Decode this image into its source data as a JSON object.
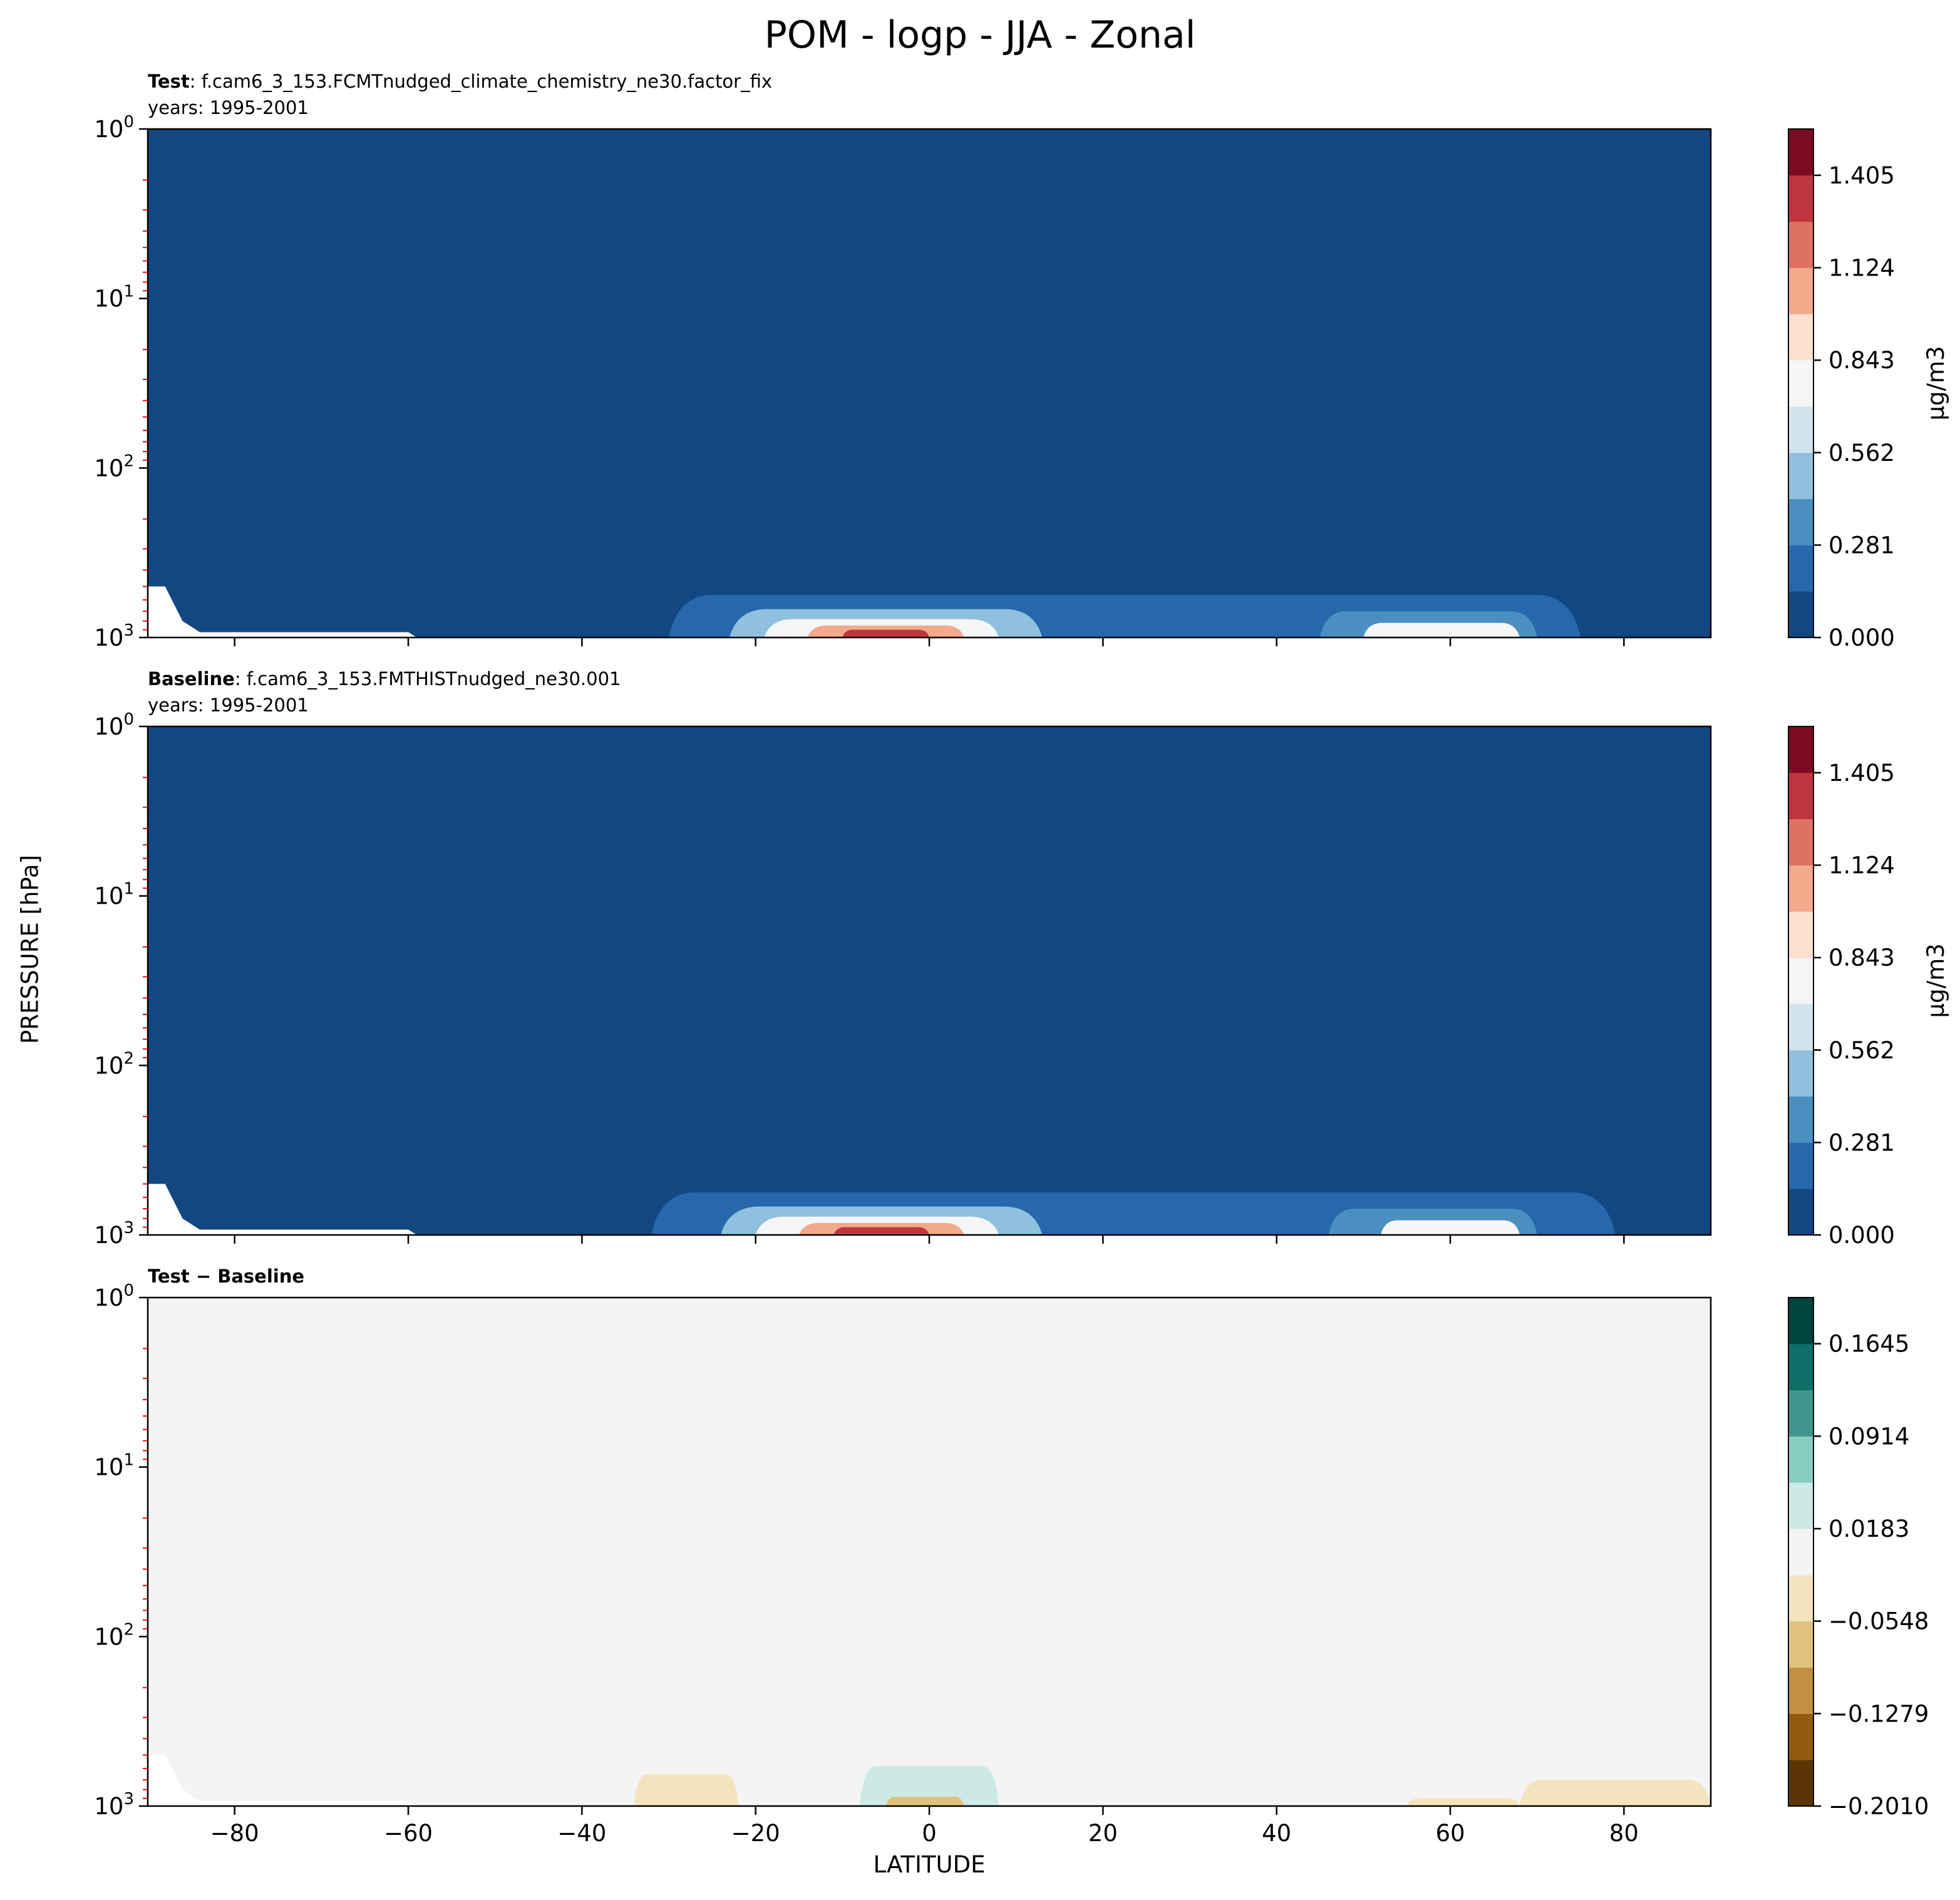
{
  "title": "POM - logp - JJA - Zonal",
  "panels": [
    {
      "label_bold": "Test",
      "label_rest": ": f.cam6_3_153.FCMTnudged_climate_chemistry_ne30.factor_fix",
      "years": "years: 1995-2001"
    },
    {
      "label_bold": "Baseline",
      "label_rest": ": f.cam6_3_153.FMTHISTnudged_ne30.001",
      "years": "years: 1995-2001"
    },
    {
      "label_bold": "Test − Baseline",
      "label_rest": "",
      "years": ""
    }
  ],
  "colors": {
    "rdbu": [
      "#124781",
      "#2668ab",
      "#4a8fc0",
      "#8fc0dd",
      "#d0e3ef",
      "#f4f5f6",
      "#fbdfcf",
      "#f3a98a",
      "#de7064",
      "#c0353d",
      "#7c0c23"
    ],
    "brbg": [
      "#5c3507",
      "#905b10",
      "#c38f42",
      "#dfc27d",
      "#f3e4be",
      "#f3f4f3",
      "#cde9e6",
      "#88cdc1",
      "#40978e",
      "#0f6e66",
      "#01443b"
    ]
  },
  "chart_data": [
    {
      "type": "heatmap",
      "panel": "Test",
      "xlabel": "",
      "ylabel": "PRESSURE [hPa]",
      "xlim": [
        -90,
        90
      ],
      "ylim_hPa": [
        1000,
        1
      ],
      "yscale": "log",
      "ytick_labels": [
        "10^0",
        "10^1",
        "10^2",
        "10^3"
      ],
      "colorbar": {
        "label": "μg/m3",
        "min": 0.0,
        "max": 1.5457,
        "levels": 11,
        "tick_labels": [
          "0.000",
          "0.281",
          "0.562",
          "0.843",
          "1.124",
          "1.405"
        ]
      },
      "background_value": 0.0,
      "blobs": [
        {
          "lat_min": -30,
          "lat_max": 75,
          "p_top_hPa": 560,
          "value": 0.15
        },
        {
          "lat_min": -23,
          "lat_max": 13,
          "p_top_hPa": 680,
          "value": 0.45
        },
        {
          "lat_min": -19,
          "lat_max": 8,
          "p_top_hPa": 780,
          "value": 0.8
        },
        {
          "lat_min": -14,
          "lat_max": 4,
          "p_top_hPa": 850,
          "value": 1.1
        },
        {
          "lat_min": -10,
          "lat_max": 0,
          "p_top_hPa": 900,
          "value": 1.35
        },
        {
          "lat_min": 45,
          "lat_max": 70,
          "p_top_hPa": 700,
          "value": 0.4
        },
        {
          "lat_min": 50,
          "lat_max": 68,
          "p_top_hPa": 820,
          "value": 0.75
        }
      ]
    },
    {
      "type": "heatmap",
      "panel": "Baseline",
      "xlabel": "",
      "ylabel": "PRESSURE [hPa]",
      "xlim": [
        -90,
        90
      ],
      "ylim_hPa": [
        1000,
        1
      ],
      "yscale": "log",
      "ytick_labels": [
        "10^0",
        "10^1",
        "10^2",
        "10^3"
      ],
      "colorbar": {
        "label": "μg/m3",
        "min": 0.0,
        "max": 1.5457,
        "levels": 11,
        "tick_labels": [
          "0.000",
          "0.281",
          "0.562",
          "0.843",
          "1.124",
          "1.405"
        ]
      },
      "background_value": 0.0,
      "blobs": [
        {
          "lat_min": -32,
          "lat_max": 79,
          "p_top_hPa": 560,
          "value": 0.15
        },
        {
          "lat_min": -24,
          "lat_max": 13,
          "p_top_hPa": 680,
          "value": 0.45
        },
        {
          "lat_min": -20,
          "lat_max": 8,
          "p_top_hPa": 780,
          "value": 0.8
        },
        {
          "lat_min": -15,
          "lat_max": 4,
          "p_top_hPa": 850,
          "value": 1.1
        },
        {
          "lat_min": -11,
          "lat_max": 0,
          "p_top_hPa": 900,
          "value": 1.35
        },
        {
          "lat_min": 46,
          "lat_max": 70,
          "p_top_hPa": 700,
          "value": 0.4
        },
        {
          "lat_min": 52,
          "lat_max": 68,
          "p_top_hPa": 820,
          "value": 0.75
        }
      ]
    },
    {
      "type": "heatmap",
      "panel": "Test − Baseline",
      "xlabel": "LATITUDE",
      "ylabel": "PRESSURE [hPa]",
      "xlim": [
        -90,
        90
      ],
      "xtick_labels": [
        "−80",
        "−60",
        "−40",
        "−20",
        "0",
        "20",
        "40",
        "60",
        "80"
      ],
      "ylim_hPa": [
        1000,
        1
      ],
      "yscale": "log",
      "ytick_labels": [
        "10^0",
        "10^1",
        "10^2",
        "10^3"
      ],
      "colorbar": {
        "label": "",
        "min": -0.201,
        "max": 0.201,
        "levels": 11,
        "tick_labels": [
          "−0.2010",
          "−0.1279",
          "−0.0548",
          "0.0183",
          "0.0914",
          "0.1645"
        ]
      },
      "background_value": 0.0,
      "blobs": [
        {
          "lat_min": -34,
          "lat_max": -22,
          "p_top_hPa": 650,
          "value": -0.04
        },
        {
          "lat_min": -8,
          "lat_max": 8,
          "p_top_hPa": 580,
          "value": 0.04
        },
        {
          "lat_min": -5,
          "lat_max": 4,
          "p_top_hPa": 880,
          "value": -0.09
        },
        {
          "lat_min": 68,
          "lat_max": 90,
          "p_top_hPa": 700,
          "value": -0.04
        },
        {
          "lat_min": 55,
          "lat_max": 68,
          "p_top_hPa": 900,
          "value": -0.04
        }
      ]
    }
  ]
}
